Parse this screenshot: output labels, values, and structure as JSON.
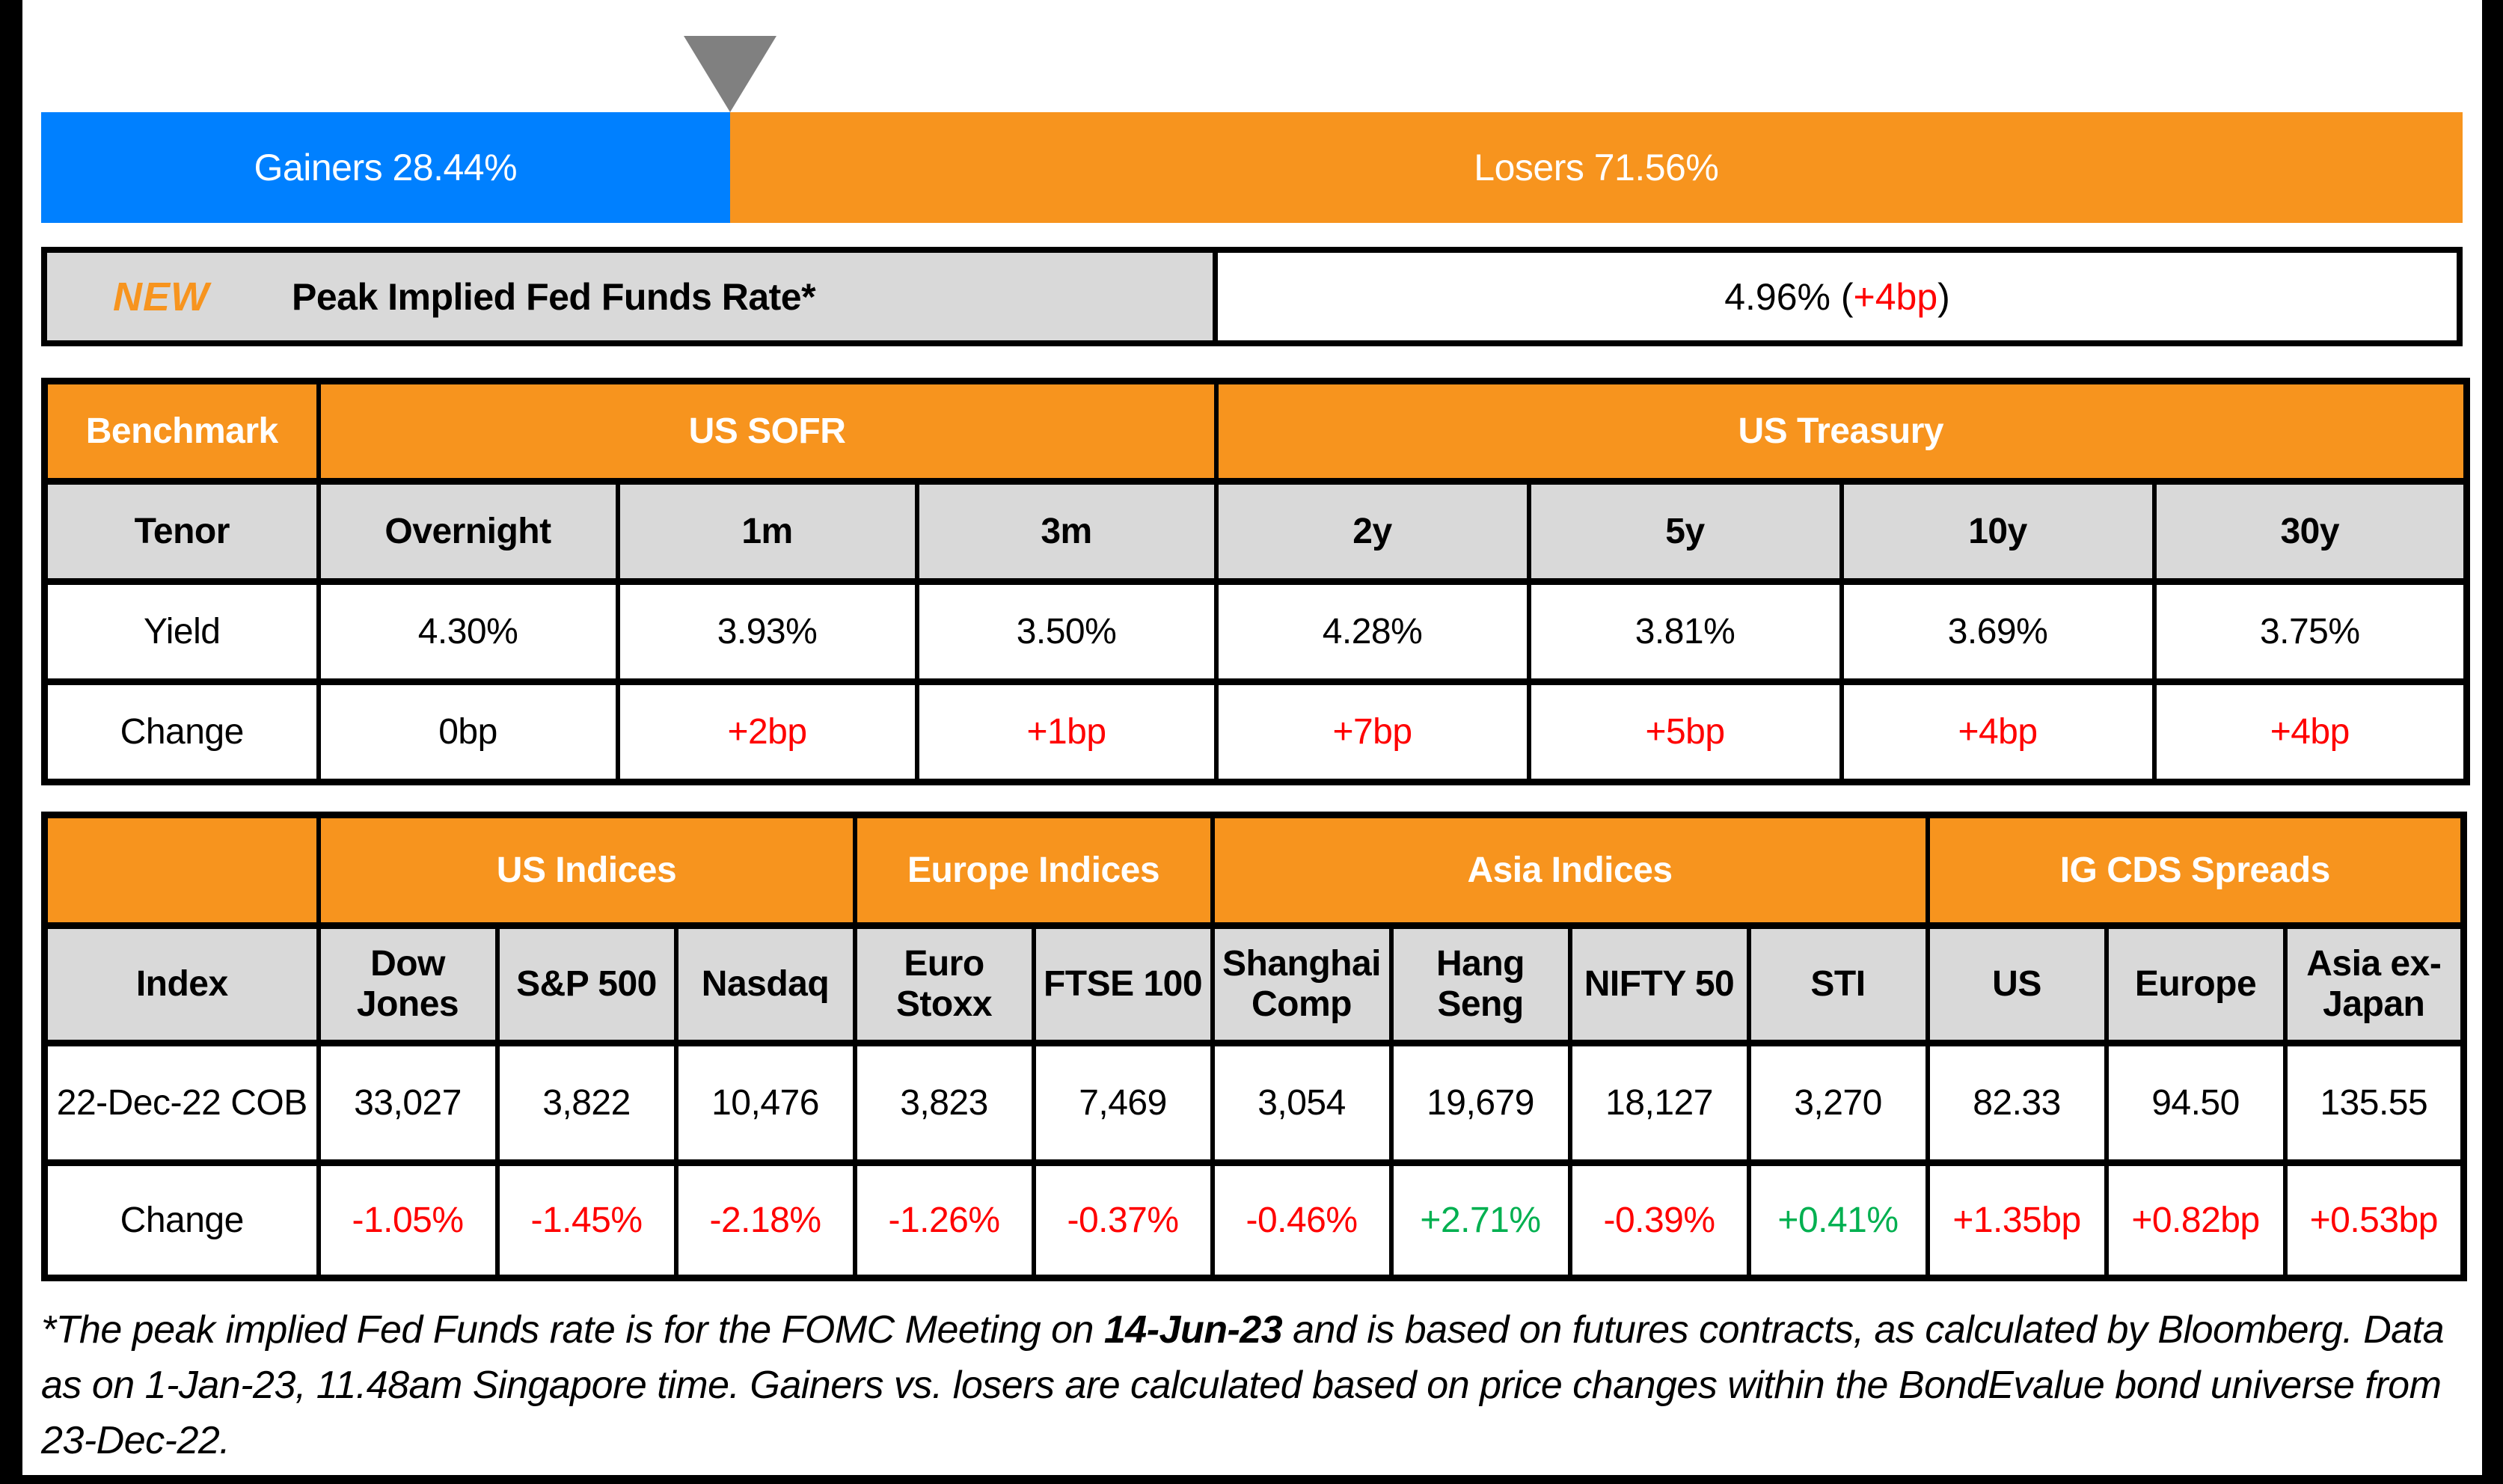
{
  "colors": {
    "accent_orange": "#F7941E",
    "gainers_blue": "#0080FF",
    "negative_red": "#FF0000",
    "positive_green": "#00B050",
    "header_gray": "#D9D9D9",
    "marker_gray": "#808080"
  },
  "gainers_losers": {
    "gainers_label": "Gainers 28.44%",
    "losers_label": "Losers 71.56%",
    "gainers_pct": 28.44,
    "losers_pct": 71.56
  },
  "peak_rate": {
    "badge": "NEW",
    "label": "Peak Implied Fed Funds Rate*",
    "value_prefix": "4.96% (",
    "change": "+4bp",
    "value_suffix": ")"
  },
  "benchmark": {
    "corner_label": "Benchmark",
    "tenor_label": "Tenor",
    "yield_label": "Yield",
    "change_label": "Change",
    "groups": [
      {
        "label": "US SOFR"
      },
      {
        "label": "US Treasury"
      }
    ],
    "columns": [
      {
        "tenor": "Overnight",
        "yield": "4.30%",
        "change": "0bp",
        "dir": "neu"
      },
      {
        "tenor": "1m",
        "yield": "3.93%",
        "change": "+2bp",
        "dir": "neg"
      },
      {
        "tenor": "3m",
        "yield": "3.50%",
        "change": "+1bp",
        "dir": "neg"
      },
      {
        "tenor": "2y",
        "yield": "4.28%",
        "change": "+7bp",
        "dir": "neg"
      },
      {
        "tenor": "5y",
        "yield": "3.81%",
        "change": "+5bp",
        "dir": "neg"
      },
      {
        "tenor": "10y",
        "yield": "3.69%",
        "change": "+4bp",
        "dir": "neg"
      },
      {
        "tenor": "30y",
        "yield": "3.75%",
        "change": "+4bp",
        "dir": "neg"
      }
    ]
  },
  "indices": {
    "index_label": "Index",
    "date_label": "22-Dec-22 COB",
    "change_label": "Change",
    "groups": [
      {
        "label": "US Indices"
      },
      {
        "label": "Europe Indices"
      },
      {
        "label": "Asia Indices"
      },
      {
        "label": "IG CDS Spreads"
      }
    ],
    "columns": [
      {
        "name": "Dow Jones",
        "value": "33,027",
        "change": "-1.05%",
        "dir": "neg"
      },
      {
        "name": "S&P 500",
        "value": "3,822",
        "change": "-1.45%",
        "dir": "neg"
      },
      {
        "name": "Nasdaq",
        "value": "10,476",
        "change": "-2.18%",
        "dir": "neg"
      },
      {
        "name": "Euro Stoxx",
        "value": "3,823",
        "change": "-1.26%",
        "dir": "neg"
      },
      {
        "name": "FTSE 100",
        "value": "7,469",
        "change": "-0.37%",
        "dir": "neg"
      },
      {
        "name": "Shanghai Comp",
        "value": "3,054",
        "change": "-0.46%",
        "dir": "neg"
      },
      {
        "name": "Hang Seng",
        "value": "19,679",
        "change": "+2.71%",
        "dir": "pos"
      },
      {
        "name": "NIFTY 50",
        "value": "18,127",
        "change": "-0.39%",
        "dir": "neg"
      },
      {
        "name": "STI",
        "value": "3,270",
        "change": "+0.41%",
        "dir": "pos"
      },
      {
        "name": "US",
        "value": "82.33",
        "change": "+1.35bp",
        "dir": "neg"
      },
      {
        "name": "Europe",
        "value": "94.50",
        "change": "+0.82bp",
        "dir": "neg"
      },
      {
        "name": "Asia ex-Japan",
        "value": "135.55",
        "change": "+0.53bp",
        "dir": "neg"
      }
    ]
  },
  "footnote": {
    "part1": "*The peak implied Fed Funds rate is for the FOMC Meeting on ",
    "bold_date": "14-Jun-23",
    "part2": " and is based on futures contracts, as calculated by Bloomberg. Data as on 1-Jan-23, 11.48am Singapore time. Gainers vs. losers are calculated based on price changes within the BondEvalue bond universe from 23-Dec-22."
  },
  "chart_data": [
    {
      "type": "bar",
      "title": "Gainers vs Losers",
      "categories": [
        "Gainers",
        "Losers"
      ],
      "values": [
        28.44,
        71.56
      ],
      "unit": "%",
      "orientation": "horizontal-stacked",
      "colors": [
        "#0080FF",
        "#F7941E"
      ]
    },
    {
      "type": "table",
      "title": "Peak Implied Fed Funds Rate",
      "columns": [
        "Value",
        "Change"
      ],
      "rows": [
        [
          "4.96%",
          "+4bp"
        ]
      ]
    },
    {
      "type": "table",
      "title": "Benchmark",
      "column_groups": [
        {
          "label": "US SOFR",
          "span": 3
        },
        {
          "label": "US Treasury",
          "span": 4
        }
      ],
      "columns": [
        "Overnight",
        "1m",
        "3m",
        "2y",
        "5y",
        "10y",
        "30y"
      ],
      "rows": {
        "Yield": [
          "4.30%",
          "3.93%",
          "3.50%",
          "4.28%",
          "3.81%",
          "3.69%",
          "3.75%"
        ],
        "Change": [
          "0bp",
          "+2bp",
          "+1bp",
          "+7bp",
          "+5bp",
          "+4bp",
          "+4bp"
        ]
      }
    },
    {
      "type": "table",
      "title": "Indices and IG CDS Spreads",
      "column_groups": [
        {
          "label": "US Indices",
          "span": 3
        },
        {
          "label": "Europe Indices",
          "span": 2
        },
        {
          "label": "Asia Indices",
          "span": 4
        },
        {
          "label": "IG CDS Spreads",
          "span": 3
        }
      ],
      "columns": [
        "Dow Jones",
        "S&P 500",
        "Nasdaq",
        "Euro Stoxx",
        "FTSE 100",
        "Shanghai Comp",
        "Hang Seng",
        "NIFTY 50",
        "STI",
        "US",
        "Europe",
        "Asia ex-Japan"
      ],
      "rows": {
        "22-Dec-22 COB": [
          "33,027",
          "3,822",
          "10,476",
          "3,823",
          "7,469",
          "3,054",
          "19,679",
          "18,127",
          "3,270",
          "82.33",
          "94.50",
          "135.55"
        ],
        "Change": [
          "-1.05%",
          "-1.45%",
          "-2.18%",
          "-1.26%",
          "-0.37%",
          "-0.46%",
          "+2.71%",
          "-0.39%",
          "+0.41%",
          "+1.35bp",
          "+0.82bp",
          "+0.53bp"
        ]
      }
    }
  ]
}
